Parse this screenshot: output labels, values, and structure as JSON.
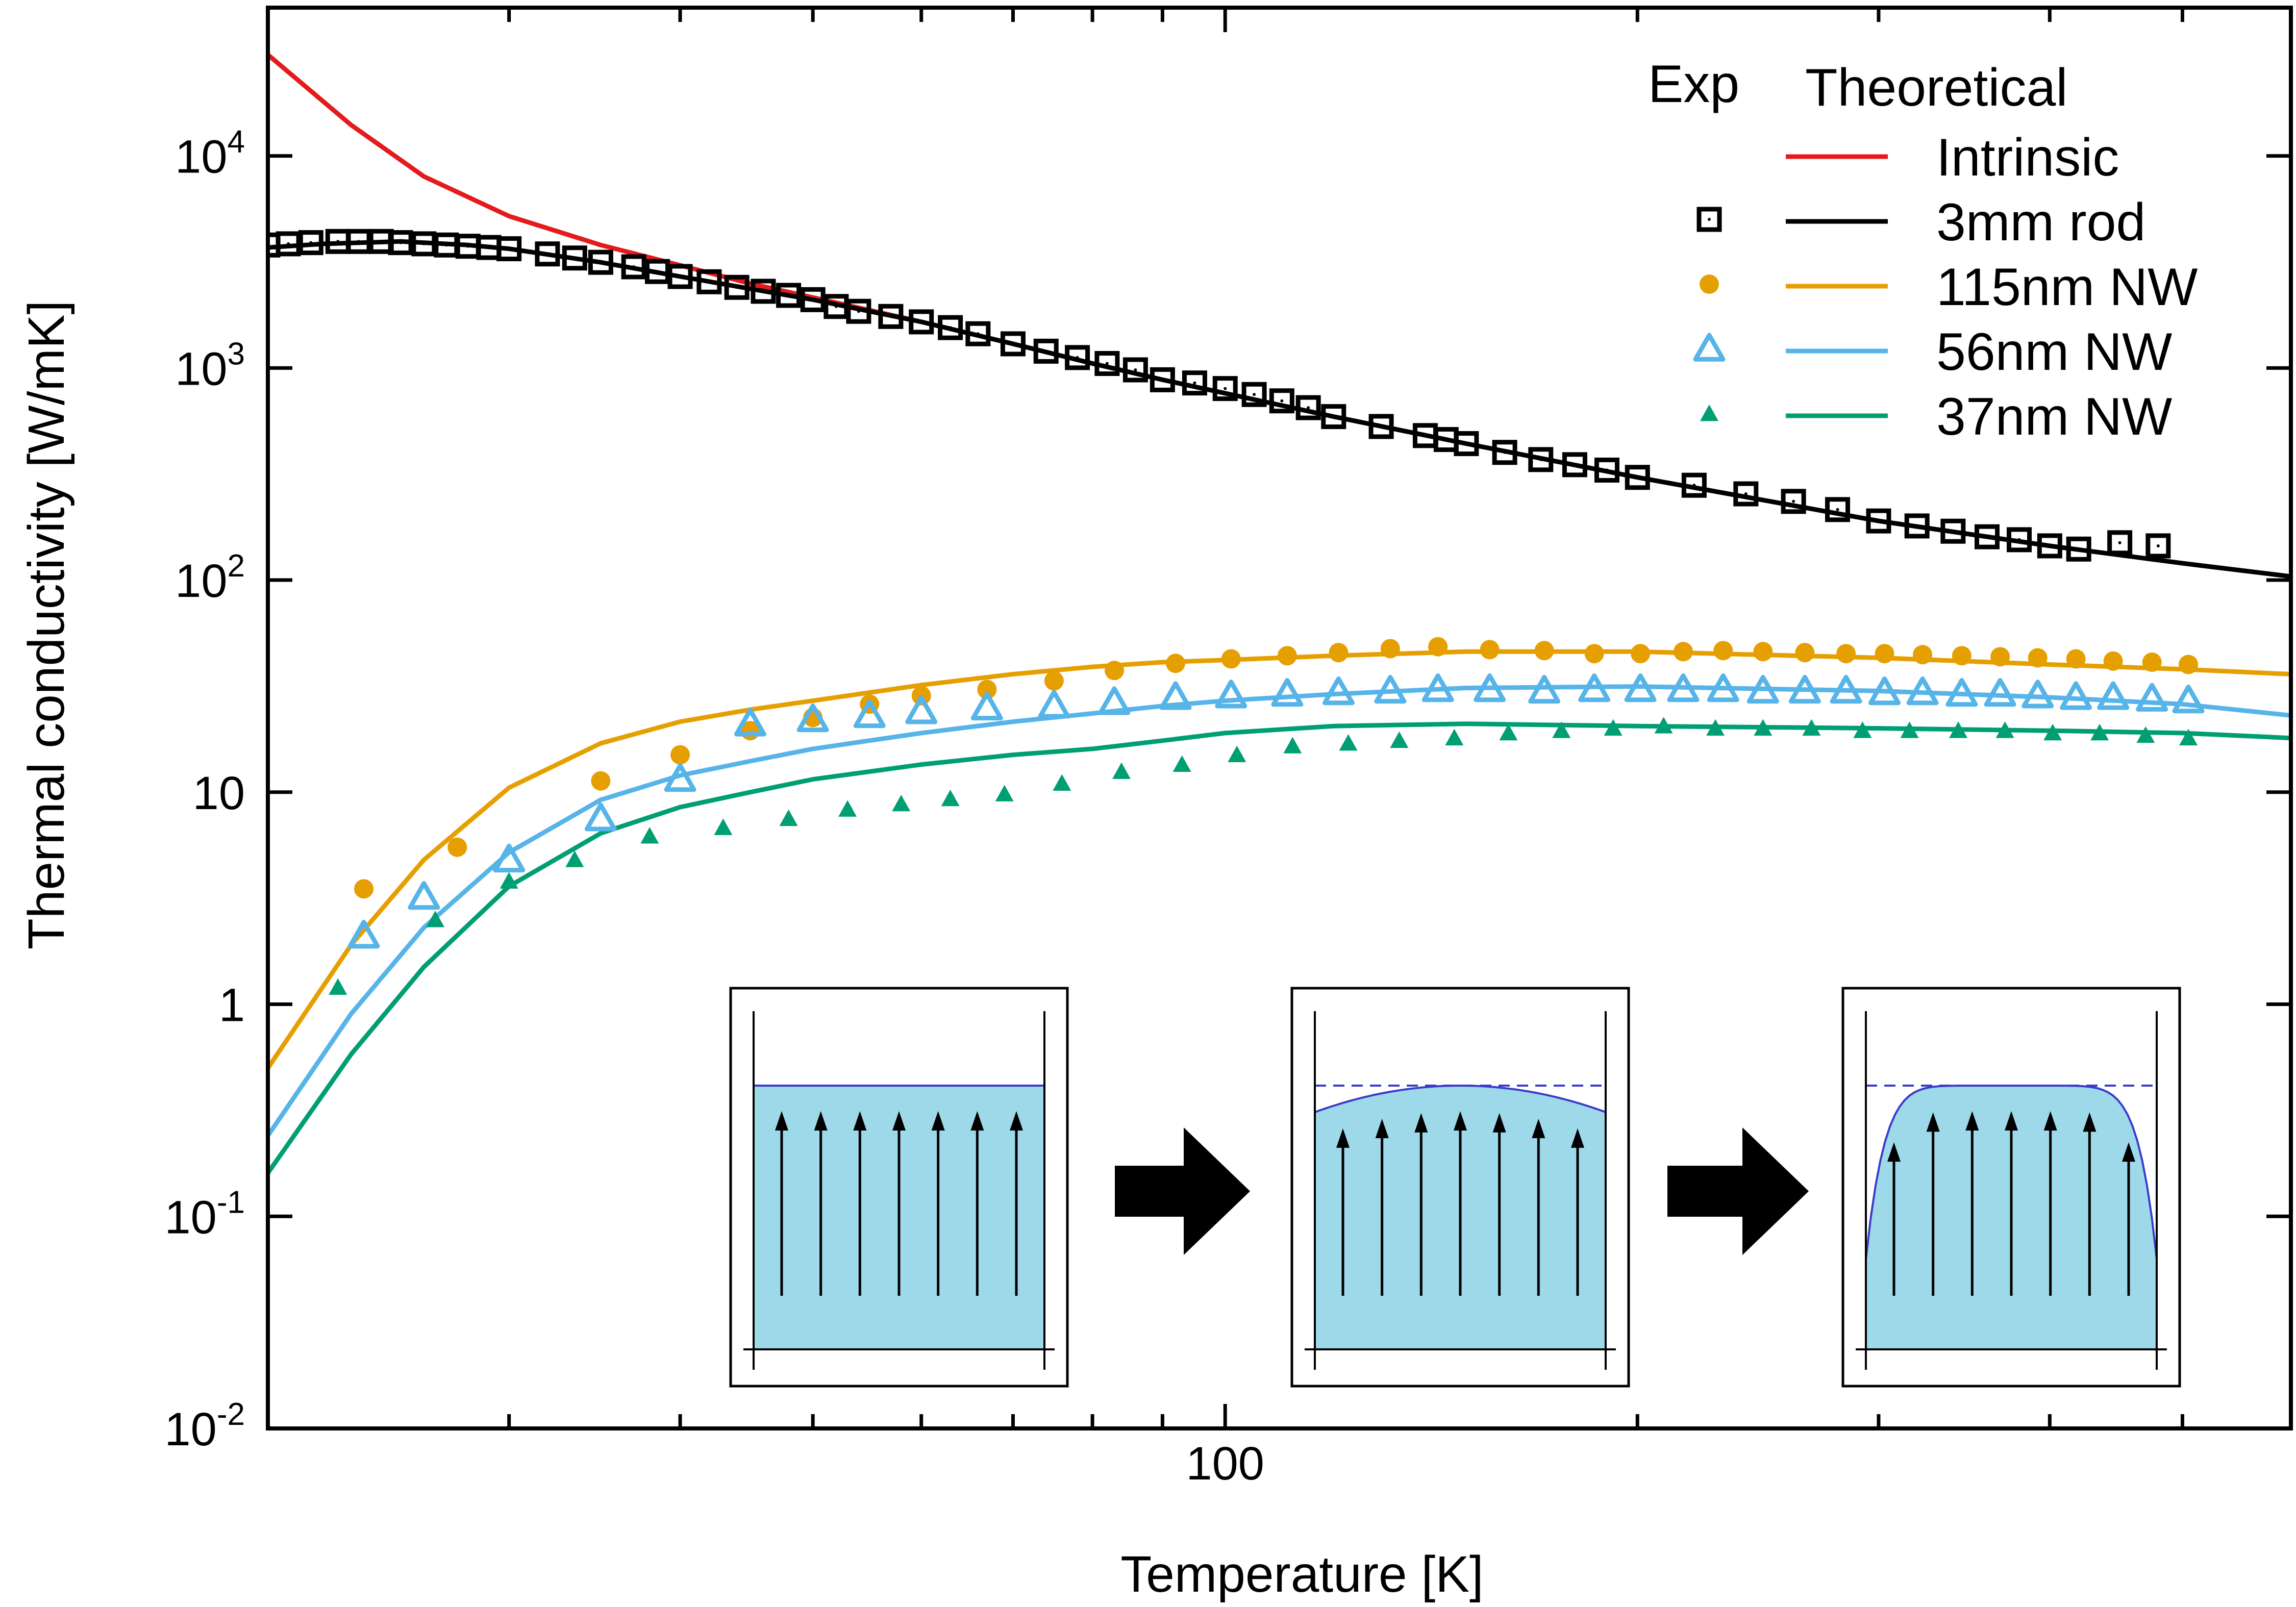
{
  "chart_data": {
    "type": "line",
    "xlabel": "Temperature [K]",
    "ylabel": "Thermal conductivity [W/mK]",
    "x_scale": "log",
    "y_scale": "log",
    "xlim": [
      20,
      600
    ],
    "ylim": [
      0.01,
      50000
    ],
    "x_ticks": [
      {
        "value": 30,
        "label": ""
      },
      {
        "value": 40,
        "label": ""
      },
      {
        "value": 50,
        "label": ""
      },
      {
        "value": 60,
        "label": ""
      },
      {
        "value": 70,
        "label": ""
      },
      {
        "value": 80,
        "label": ""
      },
      {
        "value": 90,
        "label": ""
      },
      {
        "value": 100,
        "label": "100"
      },
      {
        "value": 200,
        "label": ""
      },
      {
        "value": 300,
        "label": ""
      },
      {
        "value": 400,
        "label": ""
      },
      {
        "value": 500,
        "label": ""
      }
    ],
    "y_ticks": [
      {
        "value": 0.01,
        "base": "10",
        "exp": "-2"
      },
      {
        "value": 0.1,
        "base": "10",
        "exp": "-1"
      },
      {
        "value": 1,
        "base": "1",
        "exp": ""
      },
      {
        "value": 10,
        "base": "10",
        "exp": ""
      },
      {
        "value": 100,
        "base": "10",
        "exp": "2"
      },
      {
        "value": 1000,
        "base": "10",
        "exp": "3"
      },
      {
        "value": 10000,
        "base": "10",
        "exp": "4"
      }
    ],
    "legend": {
      "placement": "top-right",
      "header_exp": "Exp",
      "header_theory": "Theoretical"
    },
    "series": [
      {
        "name": "Intrinsic",
        "color": "#e41a1c",
        "marker": "none",
        "line": {
          "x": [
            20,
            23,
            26,
            30,
            35,
            40,
            45,
            50,
            60,
            70,
            80,
            90,
            100,
            120,
            150,
            200,
            300,
            400,
            500,
            600
          ],
          "y": [
            30000,
            14000,
            8000,
            5200,
            3800,
            3050,
            2500,
            2150,
            1650,
            1300,
            1050,
            880,
            760,
            590,
            440,
            305,
            190,
            145,
            120,
            104
          ]
        },
        "points": null
      },
      {
        "name": "3mm rod",
        "color": "#000000",
        "marker": "open-square",
        "line": {
          "x": [
            20,
            22,
            25,
            28,
            30,
            35,
            40,
            50,
            60,
            70,
            80,
            90,
            100,
            120,
            150,
            200,
            300,
            400,
            500,
            600
          ],
          "y": [
            3700,
            3850,
            3950,
            3800,
            3650,
            3150,
            2700,
            2100,
            1650,
            1300,
            1050,
            880,
            760,
            590,
            440,
            305,
            190,
            145,
            120,
            104
          ]
        },
        "points": {
          "x": [
            20,
            20.7,
            21.5,
            22.5,
            23.3,
            24.2,
            25,
            26,
            27,
            28,
            29,
            30,
            32,
            33.5,
            35,
            37,
            38.5,
            40,
            42,
            44,
            46,
            48,
            50,
            52,
            54,
            57,
            60,
            63,
            66,
            70,
            74,
            78,
            82,
            86,
            90,
            95,
            100,
            105,
            110,
            115,
            120,
            130,
            140,
            145,
            150,
            160,
            170,
            180,
            190,
            200,
            220,
            240,
            260,
            280,
            300,
            320,
            340,
            360,
            380,
            400,
            420,
            450,
            480
          ],
          "y": [
            3800,
            3850,
            3900,
            3950,
            3950,
            3950,
            3900,
            3850,
            3800,
            3750,
            3700,
            3650,
            3450,
            3300,
            3150,
            3000,
            2850,
            2700,
            2550,
            2400,
            2300,
            2200,
            2100,
            1950,
            1850,
            1750,
            1650,
            1550,
            1450,
            1300,
            1200,
            1120,
            1050,
            980,
            880,
            850,
            800,
            750,
            700,
            650,
            590,
            530,
            480,
            460,
            440,
            400,
            370,
            350,
            330,
            305,
            280,
            255,
            235,
            215,
            190,
            180,
            170,
            160,
            155,
            145,
            140,
            150,
            145
          ]
        }
      },
      {
        "name": "115nm NW",
        "color": "#e69f00",
        "marker": "filled-circle",
        "line": {
          "x": [
            20,
            23,
            26,
            30,
            35,
            40,
            45,
            50,
            60,
            70,
            80,
            90,
            100,
            120,
            150,
            200,
            300,
            400,
            500,
            600
          ],
          "y": [
            0.5,
            1.9,
            4.8,
            10.5,
            17,
            21.5,
            24.5,
            27,
            32,
            36,
            39,
            41,
            42,
            44,
            46,
            46,
            43,
            40,
            38,
            36
          ]
        },
        "points": {
          "x": [
            23.5,
            27.5,
            35,
            40,
            45,
            50,
            55,
            60,
            67,
            75,
            83,
            92,
            101,
            111,
            121,
            132,
            143,
            156,
            171,
            186,
            201,
            216,
            231,
            247,
            265,
            284,
            303,
            323,
            345,
            368,
            392,
            418,
            445,
            475,
            505
          ],
          "y": [
            3.5,
            5.5,
            11.3,
            15,
            19.5,
            22.5,
            26,
            28.5,
            30.5,
            33.5,
            37.5,
            40.5,
            42.5,
            44,
            45.5,
            47.5,
            48.5,
            47,
            46.5,
            45,
            45,
            46,
            46.5,
            46,
            45.5,
            45,
            45,
            44.5,
            44,
            43.5,
            43,
            42.5,
            41.5,
            41,
            40
          ]
        }
      },
      {
        "name": "56nm NW",
        "color": "#56b4e9",
        "marker": "open-triangle",
        "line": {
          "x": [
            20,
            23,
            26,
            30,
            35,
            40,
            45,
            50,
            60,
            70,
            80,
            90,
            100,
            120,
            150,
            200,
            300,
            400,
            500,
            600
          ],
          "y": [
            0.24,
            0.9,
            2.3,
            5.2,
            9.2,
            12,
            14,
            16,
            19,
            21.5,
            23.5,
            25.5,
            27,
            29,
            31,
            31.5,
            30,
            28,
            26,
            23
          ]
        },
        "points": {
          "x": [
            23.5,
            26,
            30,
            35,
            40,
            45,
            50,
            55,
            60,
            67,
            75,
            83,
            92,
            101,
            111,
            121,
            132,
            143,
            156,
            171,
            186,
            201,
            216,
            231,
            247,
            265,
            284,
            303,
            323,
            345,
            368,
            392,
            418,
            445,
            475,
            505
          ],
          "y": [
            2.1,
            3.2,
            4.8,
            7.5,
            11.5,
            21,
            22,
            23,
            24,
            25,
            25.5,
            26.5,
            28,
            28.5,
            29,
            29.5,
            30,
            30.5,
            30.5,
            30,
            30.5,
            30.5,
            30.5,
            30.5,
            30,
            30,
            30,
            29.5,
            29.5,
            29,
            29,
            28.5,
            28,
            28,
            27.5,
            27
          ]
        }
      },
      {
        "name": "37nm NW",
        "color": "#009e73",
        "marker": "filled-triangle",
        "line": {
          "x": [
            20,
            23,
            26,
            30,
            35,
            40,
            45,
            50,
            60,
            70,
            80,
            90,
            100,
            120,
            150,
            200,
            300,
            400,
            500,
            600
          ],
          "y": [
            0.16,
            0.58,
            1.5,
            3.6,
            6.4,
            8.5,
            10,
            11.5,
            13.5,
            15,
            16,
            17.5,
            19,
            20.5,
            21,
            20.5,
            20,
            19.5,
            19,
            18
          ]
        },
        "points": {
          "x": [
            22.5,
            26.5,
            30,
            33.5,
            38,
            43,
            48,
            53,
            58,
            63,
            69,
            76,
            84,
            93,
            102,
            112,
            123,
            134,
            147,
            161,
            176,
            192,
            209,
            228,
            247,
            268,
            292,
            316,
            343,
            371,
            402,
            435,
            470,
            505
          ],
          "y": [
            1.2,
            2.5,
            3.8,
            4.8,
            6.2,
            6.8,
            7.5,
            8.3,
            8.8,
            9.3,
            9.8,
            11,
            12.5,
            13.5,
            15,
            16.5,
            17,
            17.5,
            18,
            19,
            19.5,
            20,
            20.5,
            20,
            20,
            20,
            19.5,
            19.5,
            19.5,
            19.5,
            19,
            19,
            18.5,
            18
          ]
        }
      }
    ]
  },
  "inset": {
    "fill_color": "#9ed9ea",
    "stroke_color": "#3a3acb",
    "panels": [
      "uniform-flow",
      "slightly-curved-flow",
      "strongly-curved-flow"
    ]
  }
}
